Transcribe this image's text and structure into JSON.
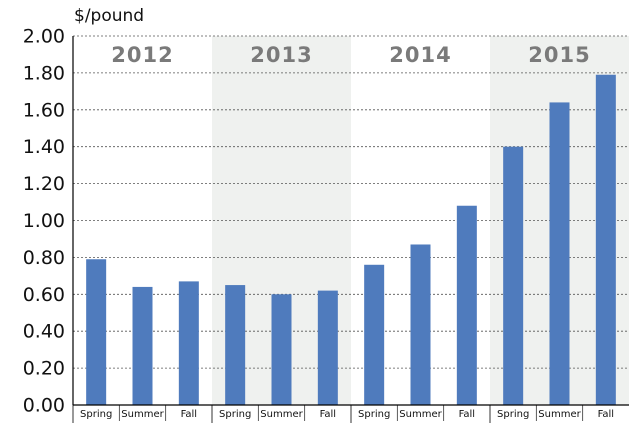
{
  "chart_data": {
    "type": "bar",
    "y_axis_label": "$/pound",
    "groups": [
      "2012",
      "2013",
      "2014",
      "2015"
    ],
    "categories": [
      "Spring",
      "Summer",
      "Fall",
      "Spring",
      "Summer",
      "Fall",
      "Spring",
      "Summer",
      "Fall",
      "Spring",
      "Summer",
      "Fall"
    ],
    "values": [
      0.79,
      0.64,
      0.67,
      0.65,
      0.6,
      0.62,
      0.76,
      0.87,
      1.08,
      1.4,
      1.64,
      1.79
    ],
    "color": "#4f7bbd",
    "ylim": [
      0,
      2
    ],
    "yticks": [
      {
        "value": 0,
        "label": "0.00"
      },
      {
        "value": 0.2,
        "label": "0.20"
      },
      {
        "value": 0.4,
        "label": "0.40"
      },
      {
        "value": 0.6,
        "label": "0.60"
      },
      {
        "value": 0.8,
        "label": "0.80"
      },
      {
        "value": 1,
        "label": "1.00"
      },
      {
        "value": 1.2,
        "label": "1.20"
      },
      {
        "value": 1.4,
        "label": "1.40"
      },
      {
        "value": 1.6,
        "label": "1.60"
      },
      {
        "value": 1.8,
        "label": "1.80"
      },
      {
        "value": 2,
        "label": "2.00"
      }
    ],
    "grid": true
  }
}
